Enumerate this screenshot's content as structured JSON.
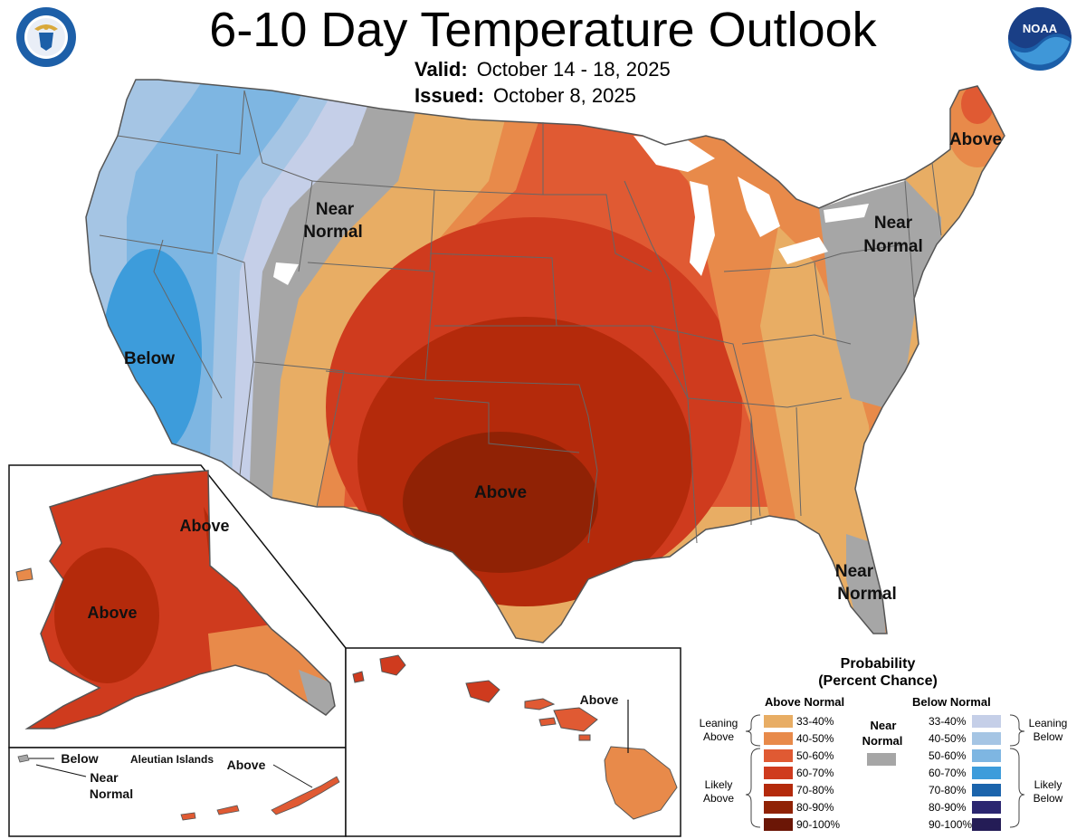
{
  "header": {
    "title": "6-10 Day Temperature Outlook",
    "valid_label": "Valid:",
    "valid_value": "October 14 - 18, 2025",
    "issued_label": "Issued:",
    "issued_value": "October 8, 2025"
  },
  "logos": {
    "commerce": "department-of-commerce-seal",
    "noaa": "NOAA",
    "noaa_icon": "noaa-logo"
  },
  "map_labels": {
    "conus_near_normal_west": [
      "Near",
      "Normal"
    ],
    "conus_below": "Below",
    "conus_above_center": "Above",
    "conus_above_ne": "Above",
    "conus_near_normal_ne": [
      "Near",
      "Normal"
    ],
    "conus_near_normal_fl": [
      "Near",
      "Normal"
    ],
    "alaska_above_ne": "Above",
    "alaska_above_w": "Above",
    "aleutian_title": "Aleutian Islands",
    "aleutian_below": "Below",
    "aleutian_near_normal": [
      "Near",
      "Normal"
    ],
    "aleutian_above": "Above",
    "hawaii_above": "Above"
  },
  "legend": {
    "title_line1": "Probability",
    "title_line2": "(Percent Chance)",
    "above_header": "Above Normal",
    "below_header": "Below Normal",
    "near_header": [
      "Near",
      "Normal"
    ],
    "above_bins": [
      {
        "label": "33-40%",
        "color": "#e8ad64"
      },
      {
        "label": "40-50%",
        "color": "#e88a4a"
      },
      {
        "label": "50-60%",
        "color": "#e05a33"
      },
      {
        "label": "60-70%",
        "color": "#cf3b1e"
      },
      {
        "label": "70-80%",
        "color": "#b42a0b"
      },
      {
        "label": "80-90%",
        "color": "#902205"
      },
      {
        "label": "90-100%",
        "color": "#6b1606"
      }
    ],
    "below_bins": [
      {
        "label": "33-40%",
        "color": "#c5cfe8"
      },
      {
        "label": "40-50%",
        "color": "#a5c5e4"
      },
      {
        "label": "50-60%",
        "color": "#7eb6e2"
      },
      {
        "label": "60-70%",
        "color": "#3d9cdb"
      },
      {
        "label": "70-80%",
        "color": "#1b64ac"
      },
      {
        "label": "80-90%",
        "color": "#2b2670"
      },
      {
        "label": "90-100%",
        "color": "#241c56"
      }
    ],
    "near_color": "#a6a6a6",
    "leaning_above": [
      "Leaning",
      "Above"
    ],
    "likely_above": [
      "Likely",
      "Above"
    ],
    "leaning_below": [
      "Leaning",
      "Below"
    ],
    "likely_below": [
      "Likely",
      "Below"
    ]
  }
}
